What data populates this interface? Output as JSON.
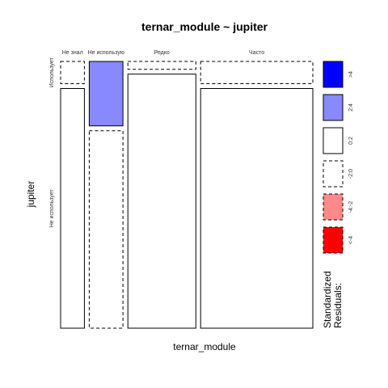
{
  "chart_data": {
    "type": "mosaic",
    "title": "ternar_module ~ jupiter",
    "xlabel": "ternar_module",
    "ylabel": "jupiter",
    "x_categories": [
      "Не знал",
      "Не использую",
      "Редко",
      "Часто"
    ],
    "y_categories": [
      "Использует",
      "Не использует"
    ],
    "x_proportions": [
      0.091,
      0.129,
      0.26,
      0.429
    ],
    "cells": [
      {
        "x": "Не знал",
        "y": "Использует",
        "proportion": 0.085,
        "residual_band": "-2:0"
      },
      {
        "x": "Не знал",
        "y": "Не использует",
        "proportion": 0.915,
        "residual_band": "0:2"
      },
      {
        "x": "Не использую",
        "y": "Использует",
        "proportion": 0.246,
        "residual_band": "2:4"
      },
      {
        "x": "Не использую",
        "y": "Не использует",
        "proportion": 0.754,
        "residual_band": "-2:0"
      },
      {
        "x": "Редко",
        "y": "Использует",
        "proportion": 0.03,
        "residual_band": "-2:0"
      },
      {
        "x": "Редко",
        "y": "Не использует",
        "proportion": 0.97,
        "residual_band": "0:2"
      },
      {
        "x": "Часто",
        "y": "Использует",
        "proportion": 0.085,
        "residual_band": "-2:0"
      },
      {
        "x": "Часто",
        "y": "Не использует",
        "proportion": 0.915,
        "residual_band": "0:2"
      }
    ],
    "legend": {
      "title_lines": [
        "Standardized",
        "Residuals:"
      ],
      "placement": "right",
      "entries": [
        {
          "label": ">4",
          "band": ">4",
          "color": "#0000ff",
          "dashed": false
        },
        {
          "label": "2:4",
          "band": "2:4",
          "color": "#8888ff",
          "dashed": false
        },
        {
          "label": "0:2",
          "band": "0:2",
          "color": "#ffffff",
          "dashed": false
        },
        {
          "label": "-2:0",
          "band": "-2:0",
          "color": "#ffffff",
          "dashed": true
        },
        {
          "label": "-4:-2",
          "band": "-4:-2",
          "color": "#ff8888",
          "dashed": true
        },
        {
          "label": "<-4",
          "band": "<-4",
          "color": "#ff0000",
          "dashed": true
        }
      ]
    }
  }
}
